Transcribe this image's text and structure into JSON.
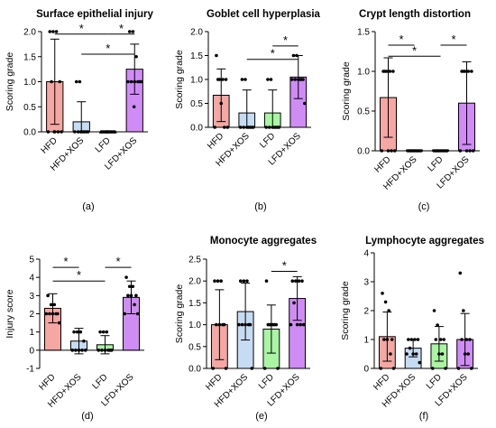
{
  "colors": {
    "HFD": "#f4a7a3",
    "HFD+XOS": "#c6dcf2",
    "LFD": "#a9f5a3",
    "LFD+XOS": "#d08cf5",
    "axis": "#000000",
    "point": "#000000"
  },
  "chart_data": [
    {
      "type": "bar",
      "title": "Surface epithelial injury",
      "ylabel": "Scoring grade",
      "panel_label": "(a)",
      "categories": [
        "HFD",
        "HFD+XOS",
        "LFD",
        "LFD+XOS"
      ],
      "values": [
        1.0,
        0.2,
        0.0,
        1.25
      ],
      "sd": [
        0.85,
        0.4,
        0.0,
        0.5
      ],
      "points": [
        [
          2,
          2,
          2,
          1,
          1,
          0,
          0,
          0,
          0,
          0
        ],
        [
          1,
          1,
          0,
          0,
          0,
          0,
          0,
          0,
          0,
          0
        ],
        [
          0,
          0,
          0,
          0,
          0,
          0,
          0,
          0,
          0,
          0
        ],
        [
          2,
          2,
          1.5,
          1,
          1,
          1,
          1,
          1,
          1,
          0.5
        ]
      ],
      "ylim": [
        0,
        2.0
      ],
      "yticks": [
        "0.0",
        "0.5",
        "1.0",
        "1.5",
        "2.0"
      ],
      "ytick_values": [
        0,
        0.5,
        1.0,
        1.5,
        2.0
      ],
      "significance": [
        {
          "label": "*",
          "from": 0,
          "to": 2,
          "y": 1.95
        },
        {
          "label": "*",
          "from": 2,
          "to": 3,
          "y": 1.95
        },
        {
          "label": "*",
          "from": 1,
          "to": 3,
          "y": 1.55
        }
      ]
    },
    {
      "type": "bar",
      "title": "Goblet cell hyperplasia",
      "ylabel": "Scoring grade",
      "panel_label": "(b)",
      "categories": [
        "HFD",
        "HFD+XOS",
        "LFD",
        "LFD+XOS"
      ],
      "values": [
        0.67,
        0.3,
        0.3,
        1.05
      ],
      "sd": [
        0.55,
        0.48,
        0.48,
        0.45
      ],
      "points": [
        [
          1.5,
          1,
          1,
          1,
          1,
          0.5,
          0,
          0,
          0
        ],
        [
          1,
          1,
          0,
          0,
          0,
          0,
          0,
          0,
          0
        ],
        [
          1,
          1,
          0,
          0,
          0,
          0,
          0,
          0,
          0
        ],
        [
          1.5,
          1.5,
          1,
          1,
          1,
          1,
          1,
          1,
          0.5
        ]
      ],
      "ylim": [
        0,
        2.0
      ],
      "yticks": [
        "0.0",
        "0.5",
        "1.0",
        "1.5",
        "2.0"
      ],
      "ytick_values": [
        0,
        0.5,
        1.0,
        1.5,
        2.0
      ],
      "significance": [
        {
          "label": "*",
          "from": 2,
          "to": 3,
          "y": 1.7
        },
        {
          "label": "*",
          "from": 1,
          "to": 3,
          "y": 1.42
        }
      ]
    },
    {
      "type": "bar",
      "title": "Crypt length distortion",
      "ylabel": "Scoring grade",
      "panel_label": "(c)",
      "categories": [
        "HFD",
        "HFD+XOS",
        "LFD",
        "LFD+XOS"
      ],
      "values": [
        0.67,
        0.01,
        0.01,
        0.6
      ],
      "sd": [
        0.5,
        0.0,
        0.0,
        0.52
      ],
      "points": [
        [
          1,
          1,
          1,
          1,
          1,
          0,
          0,
          0,
          0
        ],
        [
          0,
          0,
          0,
          0,
          0,
          0,
          0,
          0,
          0
        ],
        [
          0,
          0,
          0,
          0,
          0,
          0,
          0,
          0,
          0
        ],
        [
          1,
          1,
          1,
          1,
          1,
          0,
          0,
          0,
          0
        ]
      ],
      "ylim": [
        0,
        1.5
      ],
      "yticks": [
        "0.0",
        "0.5",
        "1.0",
        "1.5"
      ],
      "ytick_values": [
        0,
        0.5,
        1.0,
        1.5
      ],
      "significance": [
        {
          "label": "*",
          "from": 0,
          "to": 1,
          "y": 1.33
        },
        {
          "label": "*",
          "from": 2,
          "to": 3,
          "y": 1.33
        },
        {
          "label": "*",
          "from": 0,
          "to": 2,
          "y": 1.19
        }
      ]
    },
    {
      "type": "bar",
      "title": "",
      "ylabel": "Injury score",
      "panel_label": "(d)",
      "categories": [
        "HFD",
        "HFD+XOS",
        "LFD",
        "LFD+XOS"
      ],
      "values": [
        2.3,
        0.5,
        0.3,
        2.9
      ],
      "sd": [
        0.8,
        0.7,
        0.5,
        0.9
      ],
      "points": [
        [
          3,
          2.5,
          2.5,
          2,
          2,
          2,
          2,
          2,
          1.5
        ],
        [
          1,
          1,
          1,
          0.5,
          0,
          0,
          0,
          0,
          0
        ],
        [
          1,
          1,
          1,
          0,
          0,
          0,
          0,
          0,
          0
        ],
        [
          4,
          3.5,
          3.5,
          3,
          3,
          3,
          2.5,
          2,
          2
        ]
      ],
      "ylim": [
        -1,
        5
      ],
      "yticks": [
        "-1",
        "0",
        "1",
        "2",
        "3",
        "4",
        "5"
      ],
      "ytick_values": [
        -1,
        0,
        1,
        2,
        3,
        4,
        5
      ],
      "significance": [
        {
          "label": "*",
          "from": 0,
          "to": 1,
          "y": 4.55
        },
        {
          "label": "*",
          "from": 2,
          "to": 3,
          "y": 4.55
        },
        {
          "label": "*",
          "from": 0,
          "to": 2,
          "y": 3.8
        }
      ]
    },
    {
      "type": "bar",
      "title": "Monocyte aggregates",
      "ylabel": "Scoring grade",
      "panel_label": "(e)",
      "categories": [
        "HFD",
        "HFD+XOS",
        "LFD",
        "LFD+XOS"
      ],
      "values": [
        1.0,
        1.3,
        0.9,
        1.6
      ],
      "sd": [
        0.8,
        0.65,
        0.55,
        0.5
      ],
      "points": [
        [
          2,
          2,
          2,
          1,
          1,
          1,
          1,
          0,
          0
        ],
        [
          2,
          2,
          2,
          1,
          1,
          1,
          1,
          1,
          0
        ],
        [
          2,
          1,
          1,
          1,
          1,
          1,
          1,
          0,
          0
        ],
        [
          2,
          2,
          2,
          2,
          1.5,
          1,
          1,
          1,
          1
        ]
      ],
      "ylim": [
        0,
        2.5
      ],
      "yticks": [
        "0.0",
        "0.5",
        "1.0",
        "1.5",
        "2.0",
        "2.5"
      ],
      "ytick_values": [
        0,
        0.5,
        1.0,
        1.5,
        2.0,
        2.5
      ],
      "significance": [
        {
          "label": "*",
          "from": 2,
          "to": 3,
          "y": 2.22
        }
      ]
    },
    {
      "type": "bar",
      "title": "Lymphocyte aggregates",
      "ylabel": "Scoring grade",
      "panel_label": "(f)",
      "categories": [
        "HFD",
        "HFD+XOS",
        "LFD",
        "LFD+XOS"
      ],
      "values": [
        1.1,
        0.7,
        0.85,
        1.0
      ],
      "sd": [
        0.85,
        0.3,
        0.6,
        0.9
      ],
      "points": [
        [
          2.6,
          2.3,
          2,
          1,
          1,
          1,
          0.5,
          0,
          0
        ],
        [
          1,
          1,
          1,
          1,
          0.7,
          0.5,
          0.5,
          0.5,
          0.2
        ],
        [
          2,
          1.5,
          1,
          1,
          1,
          0.5,
          0.5,
          0,
          0
        ],
        [
          3.3,
          2,
          1,
          1,
          1,
          0.5,
          0.5,
          0,
          0
        ]
      ],
      "ylim": [
        0,
        4
      ],
      "yticks": [
        "0",
        "1",
        "2",
        "3",
        "4"
      ],
      "ytick_values": [
        0,
        1,
        2,
        3,
        4
      ],
      "significance": []
    }
  ]
}
